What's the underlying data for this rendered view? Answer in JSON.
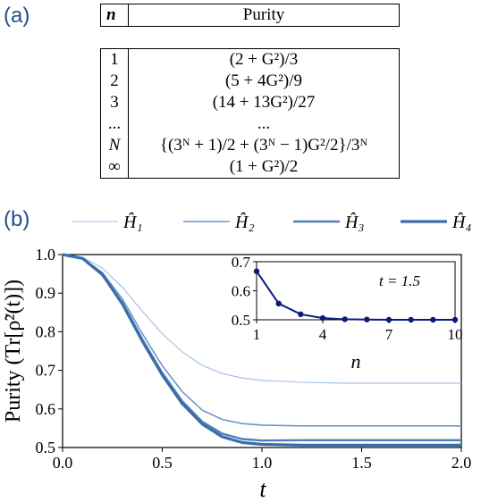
{
  "panel_a": {
    "label": "(a)",
    "header": {
      "n": "n",
      "purity": "Purity"
    },
    "rows": [
      {
        "n": "1",
        "purity": "(2 + G²)/3"
      },
      {
        "n": "2",
        "purity": "(5 + 4G²)/9"
      },
      {
        "n": "3",
        "purity": "(14 + 13G²)/27"
      },
      {
        "n": "...",
        "purity": "..."
      },
      {
        "n": "N",
        "purity": "{(3ᴺ + 1)/2 + (3ᴺ − 1)G²/2}/3ᴺ"
      },
      {
        "n": "∞",
        "purity": "(1 + G²)/2"
      }
    ]
  },
  "panel_b": {
    "label": "(b)",
    "legend": [
      "Ĥ₁",
      "Ĥ₂",
      "Ĥ₃",
      "Ĥ₄"
    ],
    "ylabel": "Purity (Tr[ρ̃²(t)])",
    "xlabel": "t",
    "inset": {
      "xlabel": "n",
      "annotation": "t = 1.5"
    }
  },
  "chart_data": [
    {
      "type": "line",
      "xlabel": "t",
      "ylabel": "Purity (Tr[ρ̃²(t)])",
      "xlim": [
        0.0,
        2.0
      ],
      "ylim": [
        0.5,
        1.0
      ],
      "xticks": [
        "0.0",
        "0.5",
        "1.0",
        "1.5",
        "2.0"
      ],
      "yticks": [
        "0.5",
        "0.6",
        "0.7",
        "0.8",
        "0.9",
        "1.0"
      ],
      "legend_position": "top",
      "x": [
        0.0,
        0.1,
        0.2,
        0.3,
        0.4,
        0.5,
        0.6,
        0.7,
        0.8,
        0.9,
        1.0,
        1.2,
        1.4,
        1.6,
        1.8,
        2.0
      ],
      "series": [
        {
          "name": "Ĥ₁",
          "color": "#9fbfe0",
          "values": [
            1.0,
            0.993,
            0.965,
            0.915,
            0.853,
            0.795,
            0.748,
            0.713,
            0.692,
            0.68,
            0.674,
            0.669,
            0.667,
            0.667,
            0.667,
            0.667
          ]
        },
        {
          "name": "Ĥ₂",
          "color": "#6f97c6",
          "values": [
            1.0,
            0.991,
            0.953,
            0.885,
            0.795,
            0.712,
            0.645,
            0.597,
            0.573,
            0.562,
            0.558,
            0.556,
            0.556,
            0.556,
            0.556,
            0.556
          ]
        },
        {
          "name": "Ĥ₃",
          "color": "#4f7fb8",
          "values": [
            1.0,
            0.991,
            0.95,
            0.875,
            0.78,
            0.693,
            0.62,
            0.567,
            0.536,
            0.522,
            0.518,
            0.519,
            0.519,
            0.519,
            0.519,
            0.519
          ]
        },
        {
          "name": "Ĥ₄",
          "color": "#3a6ea8",
          "values": [
            1.0,
            0.99,
            0.948,
            0.872,
            0.776,
            0.688,
            0.614,
            0.561,
            0.528,
            0.513,
            0.508,
            0.506,
            0.506,
            0.506,
            0.506,
            0.506
          ]
        }
      ]
    },
    {
      "type": "line",
      "xlabel": "n",
      "ylabel": "",
      "xlim": [
        1,
        10
      ],
      "ylim": [
        0.5,
        0.7
      ],
      "xticks": [
        "1",
        "4",
        "7",
        "10"
      ],
      "yticks": [
        "0.5",
        "0.6",
        "0.7"
      ],
      "annotation": "t = 1.5",
      "x": [
        1,
        2,
        3,
        4,
        5,
        6,
        7,
        8,
        9,
        10
      ],
      "series": [
        {
          "color": "#0d1a7a",
          "values": [
            0.667,
            0.556,
            0.519,
            0.506,
            0.502,
            0.501,
            0.5,
            0.5,
            0.5,
            0.5
          ]
        }
      ]
    }
  ]
}
